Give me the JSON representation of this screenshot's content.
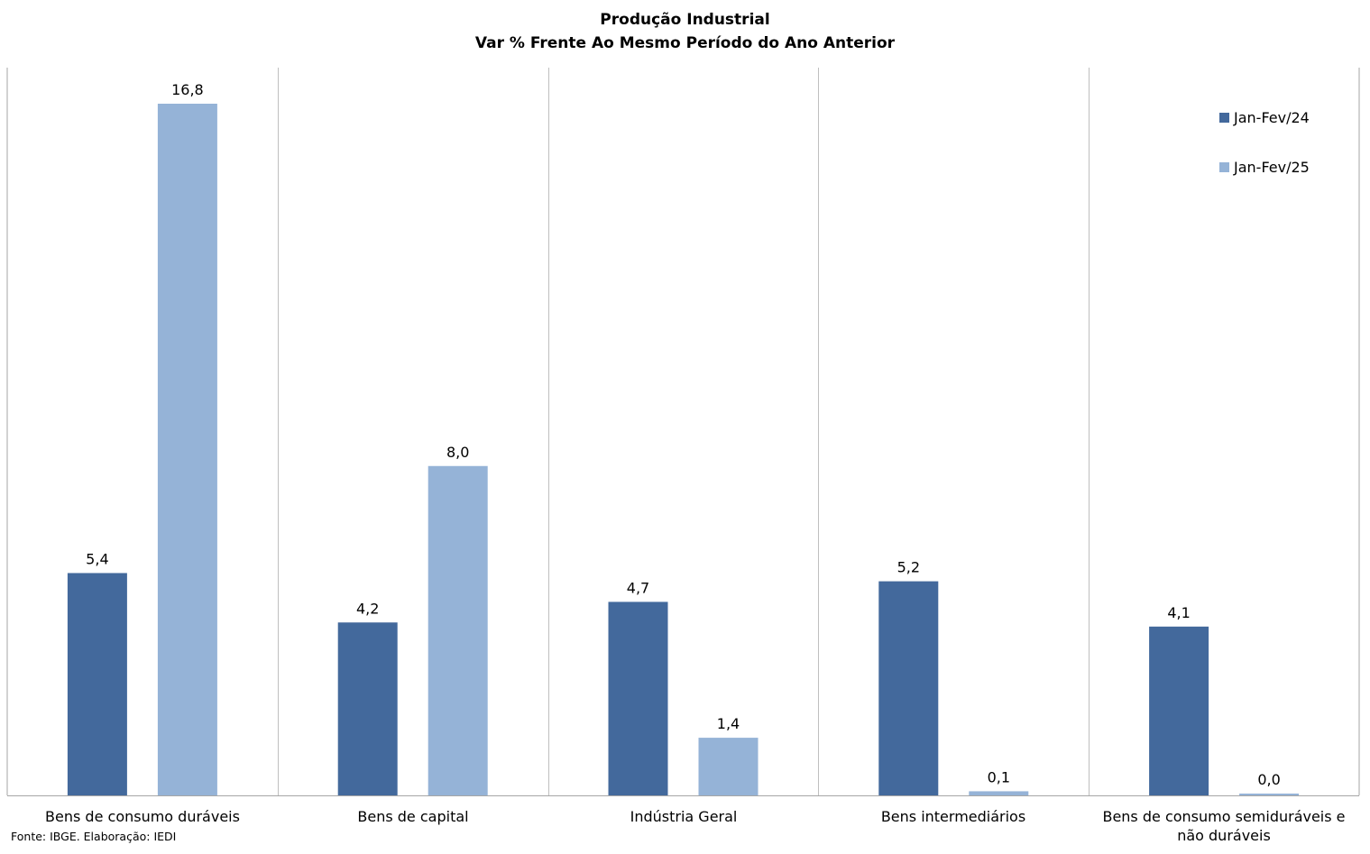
{
  "chart_data": {
    "type": "bar",
    "title": "Produção Industrial",
    "subtitle": "Var % Frente Ao Mesmo Período do Ano Anterior",
    "categories": [
      "Bens de consumo duráveis",
      "Bens de capital",
      "Indústria Geral",
      "Bens intermediários",
      "Bens de consumo semiduráveis e não duráveis"
    ],
    "series": [
      {
        "name": "Jan-Fev/24",
        "color": "#43699c",
        "values": [
          5.4,
          4.2,
          4.7,
          5.2,
          4.1
        ],
        "labels": [
          "5,4",
          "4,2",
          "4,7",
          "5,2",
          "4,1"
        ]
      },
      {
        "name": "Jan-Fev/25",
        "color": "#95b3d7",
        "values": [
          16.8,
          8.0,
          1.4,
          0.1,
          0.0
        ],
        "labels": [
          "16,8",
          "8,0",
          "1,4",
          "0,1",
          "0,0"
        ]
      }
    ],
    "ylim": [
      0,
      17.5
    ],
    "grid": "vertical category separators",
    "legend_position": "top-right",
    "source": "Fonte: IBGE. Elaboração: IEDI"
  }
}
